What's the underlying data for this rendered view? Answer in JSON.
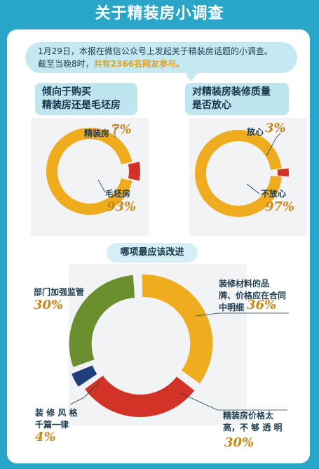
{
  "header": {
    "title": "关于精装房小调查"
  },
  "intro": {
    "line1": "1月29日，本报在微信公众号上发起关于精装房话题的小调查。",
    "line2_prefix": "截至当晚8时，",
    "line2_highlight": "共有2366名网友参与。"
  },
  "colors": {
    "yellow": "#f0ac1f",
    "red": "#d33227",
    "green": "#6b8e2f",
    "navy": "#1f3f7a",
    "label_orange": "#c9851a",
    "background": "#2aa6c9"
  },
  "q1": {
    "title_line1": "倾向于购买",
    "title_line2": "精装房还是毛坯房",
    "a_label": "精装房",
    "a_pct": "7%",
    "b_label": "毛坯房",
    "b_pct": "93%"
  },
  "q2": {
    "title_line1": "对精装房装修质量",
    "title_line2": "是否放心",
    "a_label": "放心",
    "a_pct": "3%",
    "b_label": "不放心",
    "b_pct": "97%"
  },
  "q3": {
    "title": "哪项最应该改进",
    "materials_line1": "装修材料的品",
    "materials_line2": "牌、价格应在合同",
    "materials_line3": "中明细",
    "materials_pct": "36%",
    "supervision_label": "部门加强监管",
    "supervision_pct": "30%",
    "style_line1": "装 修 风 格",
    "style_line2": "千篇一律",
    "style_pct": "4%",
    "price_line1": "精装房价格太",
    "price_line2": "高，不 够 透 明",
    "price_pct": "30%"
  },
  "chart_data": [
    {
      "type": "pie",
      "title": "倾向于购买精装房还是毛坯房",
      "labels": [
        "精装房",
        "毛坯房"
      ],
      "values": [
        7,
        93
      ]
    },
    {
      "type": "pie",
      "title": "对精装房装修质量是否放心",
      "labels": [
        "放心",
        "不放心"
      ],
      "values": [
        3,
        97
      ]
    },
    {
      "type": "pie",
      "title": "哪项最应该改进",
      "labels": [
        "装修材料的品牌、价格应在合同中明细",
        "精装房价格太高，不够透明",
        "装修风格千篇一律",
        "部门加强监管"
      ],
      "values": [
        36,
        30,
        4,
        30
      ]
    }
  ]
}
